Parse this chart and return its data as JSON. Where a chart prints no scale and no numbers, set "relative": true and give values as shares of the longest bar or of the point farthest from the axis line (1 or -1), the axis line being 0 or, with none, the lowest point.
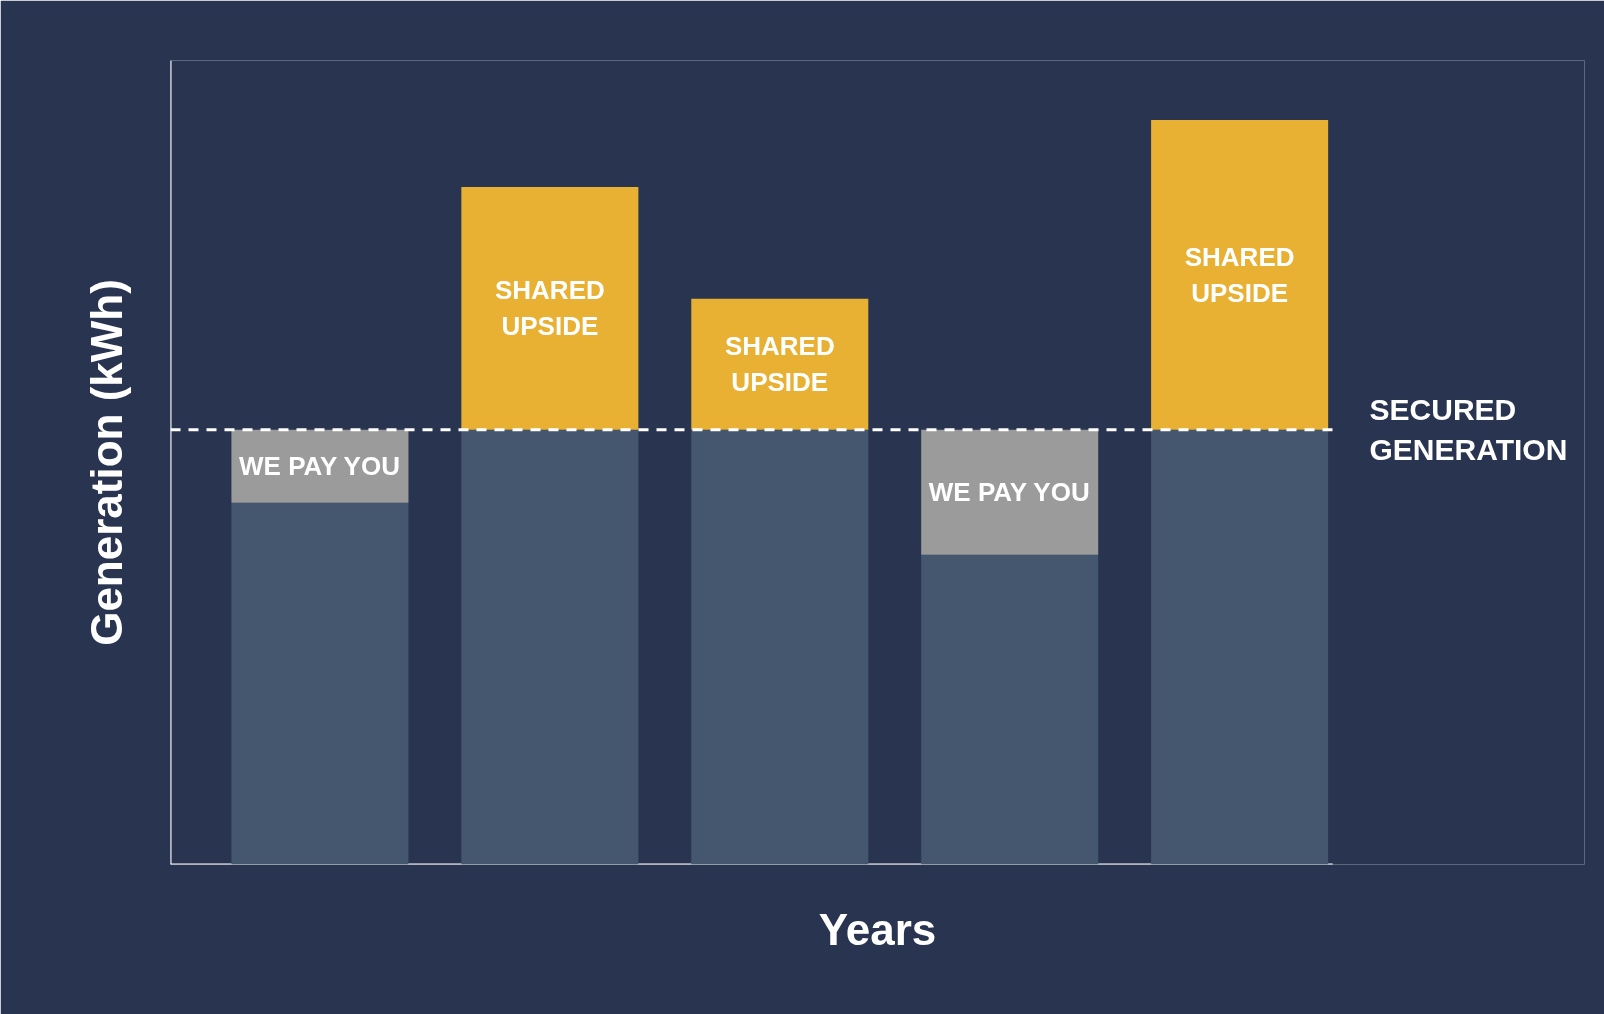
{
  "chart_data": {
    "type": "bar",
    "stacked": true,
    "relative": true,
    "xlabel": "Years",
    "ylabel": "Generation (kWh)",
    "categories": [
      null,
      null,
      null,
      null,
      null
    ],
    "series": [
      {
        "color": "#45566f",
        "values": [
          0.486,
          0.584,
          0.584,
          0.416,
          0.584
        ]
      },
      {
        "name": "WE PAY YOU",
        "color": "#9b9b9b",
        "values": [
          0.098,
          null,
          null,
          0.168,
          null
        ]
      },
      {
        "name": "SHARED UPSIDE",
        "color": "#e8b134",
        "values": [
          null,
          0.326,
          0.176,
          null,
          0.416
        ]
      }
    ],
    "ref_lines": [
      {
        "axis": "y",
        "value": 0.584,
        "label": "SECURED GENERATION",
        "color": "#ffffff",
        "line_style": "dashed"
      }
    ]
  }
}
